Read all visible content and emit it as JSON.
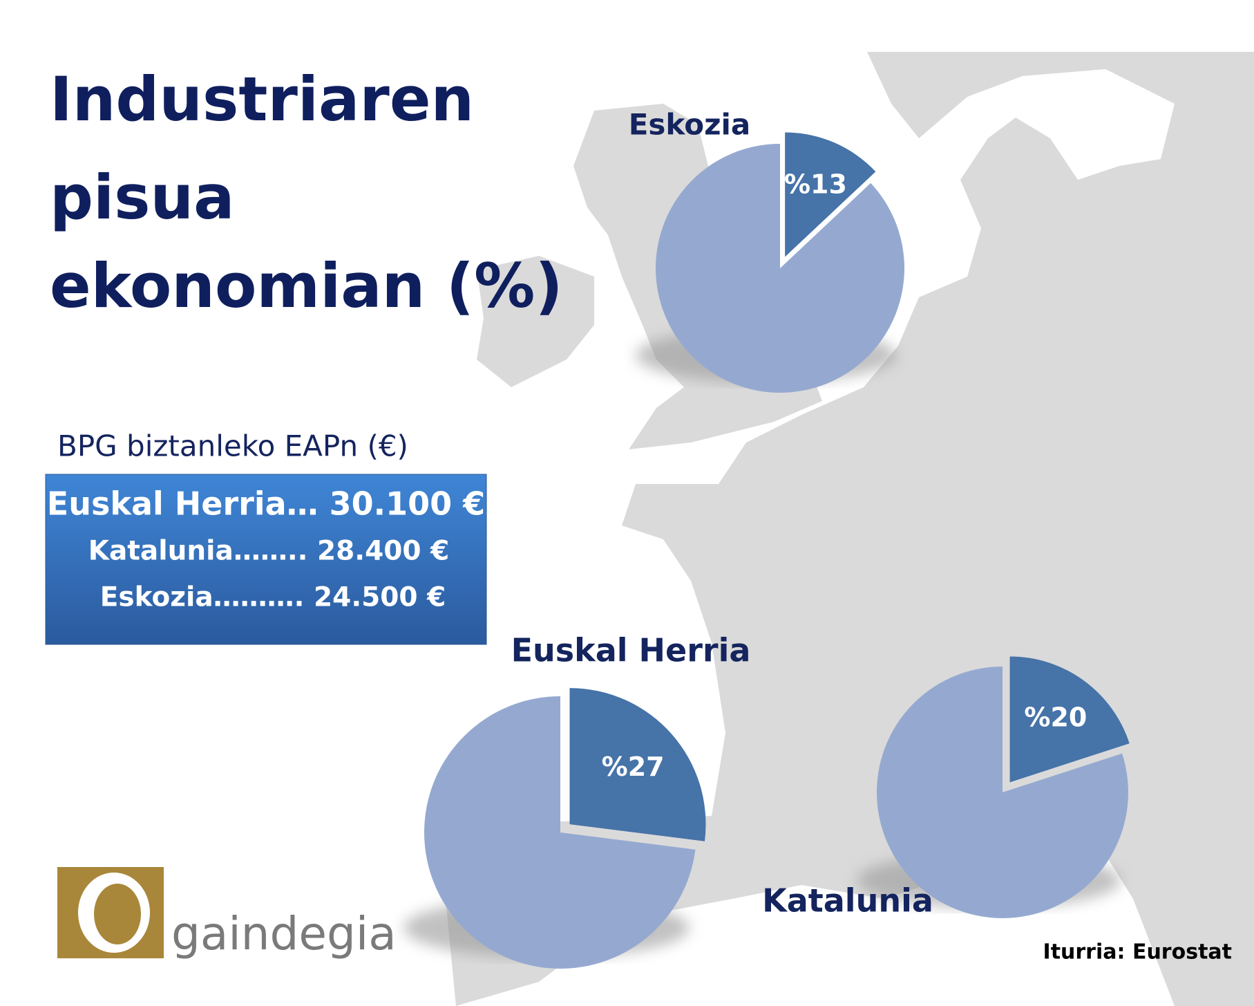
{
  "title_lines": [
    "Industriaren",
    "pisua",
    "ekonomian (%)"
  ],
  "gdp_box": {
    "heading": "BPG biztanleko EAPn (€)",
    "rows": [
      "Euskal Herria… 30.100 €",
      "Katalunia…….. 28.400 €",
      "Eskozia………. 24.500 €"
    ]
  },
  "source": "Iturria: Eurostat",
  "logo": "gaindegia",
  "chart_data": [
    {
      "type": "pie",
      "title": "Eskozia",
      "values": [
        13,
        87
      ],
      "value_labels": [
        "%13",
        null
      ],
      "colors": [
        "#4673a8",
        "#95a9d0"
      ]
    },
    {
      "type": "pie",
      "title": "Euskal Herria",
      "values": [
        27,
        73
      ],
      "value_labels": [
        "%27",
        null
      ],
      "colors": [
        "#4673a8",
        "#95a9d0"
      ]
    },
    {
      "type": "pie",
      "title": "Katalunia",
      "values": [
        20,
        80
      ],
      "value_labels": [
        "%20",
        null
      ],
      "colors": [
        "#4673a8",
        "#95a9d0"
      ]
    }
  ]
}
